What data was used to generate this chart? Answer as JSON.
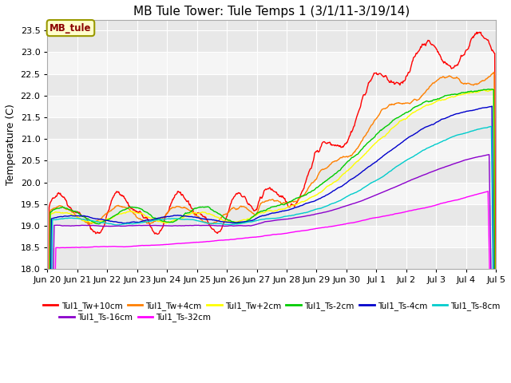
{
  "title": "MB Tule Tower: Tule Temps 1 (3/1/11-3/19/14)",
  "ylabel": "Temperature (C)",
  "ylim": [
    18.0,
    23.75
  ],
  "yticks": [
    18.0,
    18.5,
    19.0,
    19.5,
    20.0,
    20.5,
    21.0,
    21.5,
    22.0,
    22.5,
    23.0,
    23.5
  ],
  "legend_label": "MB_tule",
  "series": [
    {
      "name": "Tul1_Tw+10cm",
      "color": "#ff0000"
    },
    {
      "name": "Tul1_Tw+4cm",
      "color": "#ff8000"
    },
    {
      "name": "Tul1_Tw+2cm",
      "color": "#ffff00"
    },
    {
      "name": "Tul1_Ts-2cm",
      "color": "#00cc00"
    },
    {
      "name": "Tul1_Ts-4cm",
      "color": "#0000cc"
    },
    {
      "name": "Tul1_Ts-8cm",
      "color": "#00cccc"
    },
    {
      "name": "Tul1_Ts-16cm",
      "color": "#8b00cc"
    },
    {
      "name": "Tul1_Ts-32cm",
      "color": "#ff00ff"
    }
  ],
  "background_color": "#ffffff",
  "plot_bg_alt1": "#e8e8e8",
  "plot_bg_alt2": "#f5f5f5",
  "grid_color": "#ffffff",
  "title_fontsize": 11,
  "tick_fontsize": 8,
  "label_fontsize": 9,
  "xtick_labels": [
    "Jun 20",
    "Jun 21",
    "Jun 22",
    "Jun 23",
    "Jun 24",
    "Jun 25",
    "Jun 26",
    "Jun 27",
    "Jun 28",
    "Jun 29",
    "Jun 30",
    "Jul 1",
    "Jul 2",
    "Jul 3",
    "Jul 4",
    "Jul 5"
  ]
}
